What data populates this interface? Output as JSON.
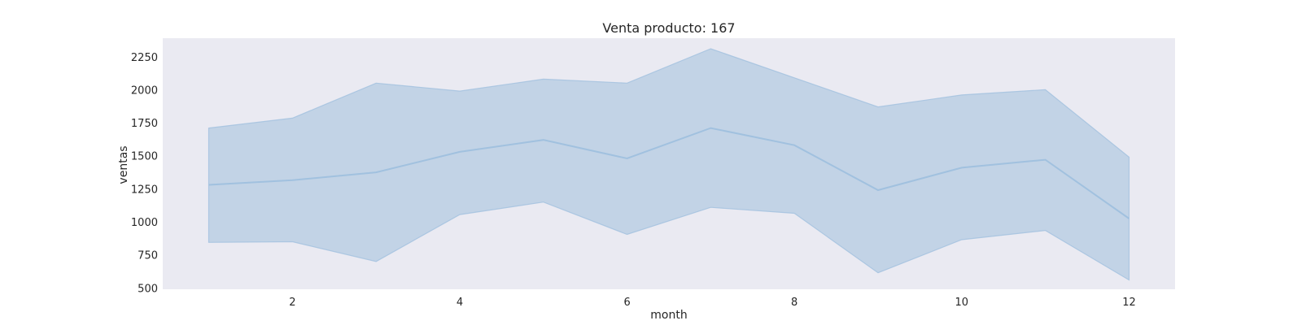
{
  "chart_data": {
    "type": "area",
    "title": "Venta producto: 167",
    "xlabel": "month",
    "ylabel": "ventas",
    "xlim": [
      0.45,
      12.55
    ],
    "ylim": [
      490,
      2390
    ],
    "xticks": [
      2,
      4,
      6,
      8,
      10,
      12
    ],
    "yticks": [
      500,
      750,
      1000,
      1250,
      1500,
      1750,
      2000,
      2250
    ],
    "grid": false,
    "x": [
      1,
      2,
      3,
      4,
      5,
      6,
      7,
      8,
      9,
      10,
      11,
      12
    ],
    "series": [
      {
        "mean": [
          1280,
          1315,
          1375,
          1530,
          1620,
          1480,
          1710,
          1580,
          1240,
          1410,
          1470,
          1025
        ],
        "upper": [
          1710,
          1785,
          2050,
          1990,
          2080,
          2050,
          2310,
          2090,
          1870,
          1960,
          2000,
          1490
        ],
        "lower": [
          845,
          850,
          700,
          1055,
          1150,
          905,
          1110,
          1065,
          615,
          865,
          935,
          560
        ]
      }
    ],
    "colors": {
      "plot_background": "#eaeaf2",
      "band_fill": "#a6c3de",
      "line": "#a1c1df"
    }
  }
}
